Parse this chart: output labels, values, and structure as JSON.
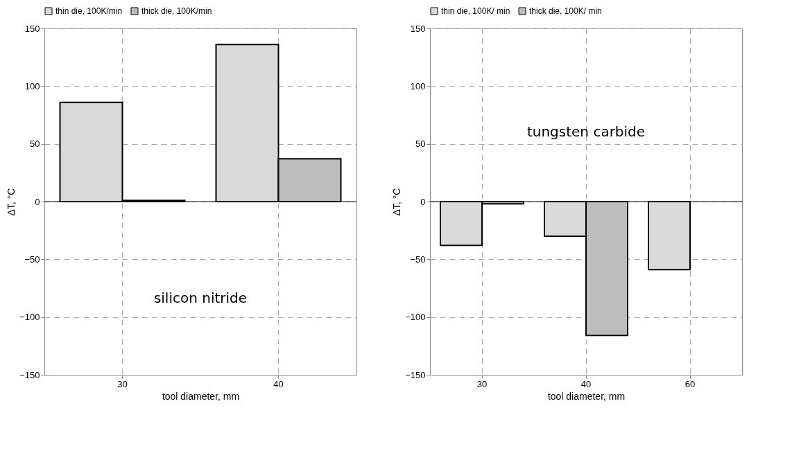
{
  "chart_data": [
    {
      "type": "bar",
      "categories": [
        "30",
        "40"
      ],
      "xlabel": "tool diameter, mm",
      "ylabel": "ΔT, °C",
      "ylim": [
        -150,
        150
      ],
      "yticks": [
        -150,
        -100,
        -50,
        0,
        50,
        100,
        150
      ],
      "grid": true,
      "legend": "top",
      "annotations": [
        "silicon nitride"
      ],
      "series": [
        {
          "name": "thin die, 100K/min",
          "color": "#d9d9d9",
          "values": [
            86,
            136
          ]
        },
        {
          "name": "thick die, 100K/min",
          "color": "#bdbdbd",
          "values": [
            1,
            37
          ]
        }
      ]
    },
    {
      "type": "bar",
      "categories": [
        "30",
        "40",
        "60"
      ],
      "xlabel": "tool diameter, mm",
      "ylabel": "ΔT, °C",
      "ylim": [
        -150,
        150
      ],
      "yticks": [
        -150,
        -100,
        -50,
        0,
        50,
        100,
        150
      ],
      "grid": true,
      "legend": "top",
      "annotations": [
        "tungsten carbide"
      ],
      "series": [
        {
          "name": "thin die, 100K/ min",
          "color": "#d9d9d9",
          "values": [
            -38,
            -30,
            -59
          ]
        },
        {
          "name": "thick die, 100K/ min",
          "color": "#bdbdbd",
          "values": [
            -2,
            -116,
            null
          ]
        }
      ]
    }
  ]
}
